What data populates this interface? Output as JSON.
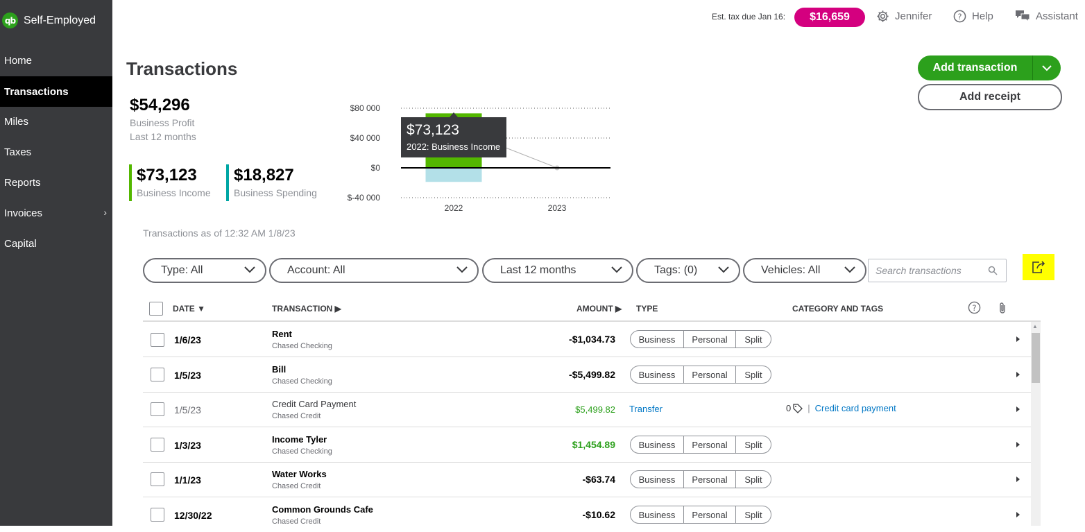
{
  "app": {
    "name": "Self-Employed",
    "logo_text": "qb"
  },
  "sidebar": {
    "items": [
      {
        "label": "Home",
        "active": false
      },
      {
        "label": "Transactions",
        "active": true
      },
      {
        "label": "Miles",
        "active": false
      },
      {
        "label": "Taxes",
        "active": false
      },
      {
        "label": "Reports",
        "active": false
      },
      {
        "label": "Invoices",
        "active": false,
        "has_submenu": true
      },
      {
        "label": "Capital",
        "active": false
      }
    ]
  },
  "topbar": {
    "est_tax_label": "Est. tax due Jan 16:",
    "est_tax_value": "$16,659",
    "user": "Jennifer",
    "help": "Help",
    "assistant": "Assistant"
  },
  "page": {
    "title": "Transactions",
    "add_transaction": "Add transaction",
    "add_receipt": "Add receipt",
    "as_of": "Transactions as of 12:32 AM 1/8/23"
  },
  "summary": {
    "profit_value": "$54,296",
    "profit_label": "Business Profit",
    "profit_period": "Last 12 months",
    "income_value": "$73,123",
    "income_label": "Business Income",
    "spending_value": "$18,827",
    "spending_label": "Business Spending"
  },
  "chart_data": {
    "type": "bar",
    "categories": [
      "2022",
      "2023"
    ],
    "series": [
      {
        "name": "Business Income",
        "values": [
          73123,
          0
        ],
        "color": "#53b700"
      },
      {
        "name": "Business Spending",
        "values": [
          -18827,
          0
        ],
        "color": "#b3e0e8"
      },
      {
        "name": "Business Profit",
        "values": [
          54296,
          0
        ],
        "type": "line",
        "color": "#b0b0b0"
      }
    ],
    "ylim": [
      -40000,
      80000
    ],
    "yticks": [
      "$80 000",
      "$40 000",
      "$0",
      "$-40 000"
    ],
    "tooltip": {
      "value": "$73,123",
      "label": "2022: Business Income"
    },
    "grid": true
  },
  "filters": {
    "type": "Type: All",
    "account": "Account: All",
    "period": "Last 12 months",
    "tags": "Tags: (0)",
    "vehicles": "Vehicles: All",
    "search_placeholder": "Search transactions"
  },
  "table": {
    "headers": {
      "date": "DATE",
      "transaction": "TRANSACTION",
      "amount": "AMOUNT",
      "type": "TYPE",
      "category": "CATEGORY AND TAGS"
    },
    "segment_labels": [
      "Business",
      "Personal",
      "Split"
    ],
    "rows": [
      {
        "date": "1/6/23",
        "name": "Rent",
        "account": "Chased Checking",
        "amount": "-$1,034.73",
        "reviewed": false
      },
      {
        "date": "1/5/23",
        "name": "Bill",
        "account": "Chased Checking",
        "amount": "-$5,499.82",
        "reviewed": false
      },
      {
        "date": "1/5/23",
        "name": "Credit Card Payment",
        "account": "Chased Credit",
        "amount": "$5,499.82",
        "reviewed": true,
        "type": "Transfer",
        "tag_count": "0",
        "category": "Credit card payment"
      },
      {
        "date": "1/3/23",
        "name": "Income Tyler",
        "account": "Chased Checking",
        "amount": "$1,454.89",
        "reviewed": false,
        "positive": true
      },
      {
        "date": "1/1/23",
        "name": "Water Works",
        "account": "Chased Credit",
        "amount": "-$63.74",
        "reviewed": false
      },
      {
        "date": "12/30/22",
        "name": "Common Grounds Cafe",
        "account": "Chased Credit",
        "amount": "-$10.62",
        "reviewed": false
      }
    ]
  }
}
